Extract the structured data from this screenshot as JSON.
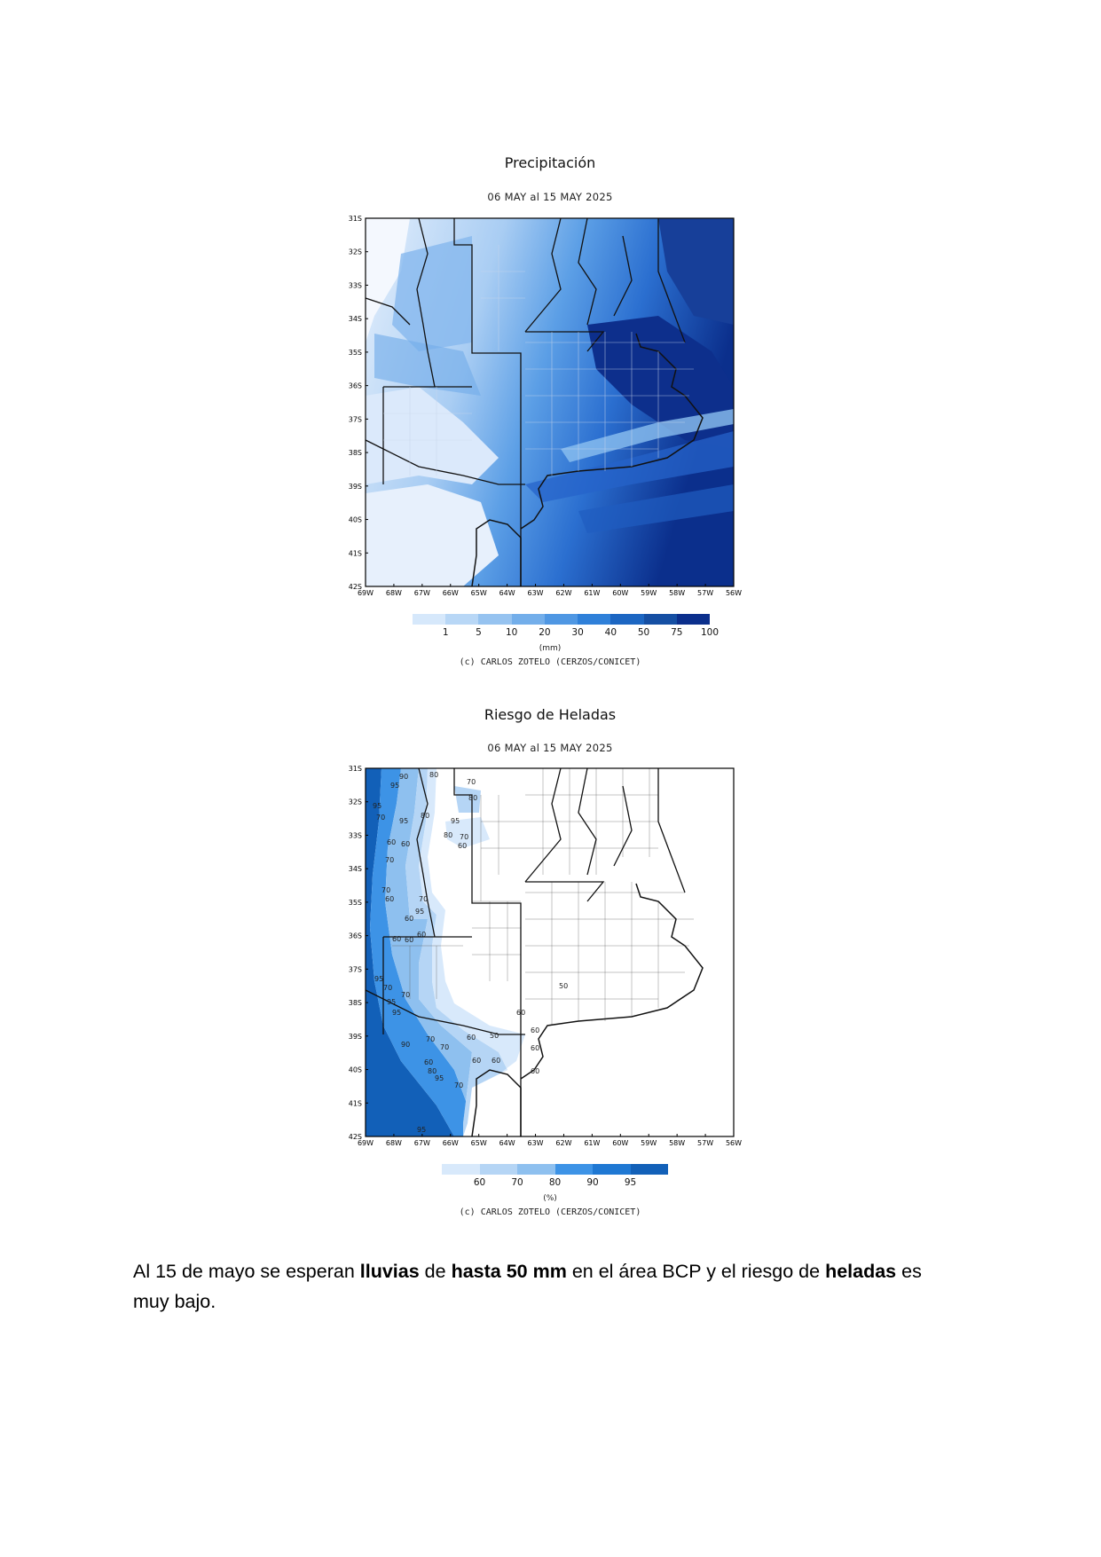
{
  "maps": [
    {
      "id": "precipitation",
      "title": "Precipitación",
      "subtitle": "06 MAY al 15 MAY 2025",
      "lat_labels": [
        "31S",
        "32S",
        "33S",
        "34S",
        "35S",
        "36S",
        "37S",
        "38S",
        "39S",
        "40S",
        "41S",
        "42S"
      ],
      "lon_labels": [
        "69W",
        "68W",
        "67W",
        "66W",
        "65W",
        "64W",
        "63W",
        "62W",
        "61W",
        "60W",
        "59W",
        "58W",
        "57W",
        "56W"
      ],
      "colorbar": {
        "colors": [
          "#d6e8fb",
          "#b8d7f6",
          "#96c3f0",
          "#73aeea",
          "#4f97e3",
          "#2f80d9",
          "#1c66c2",
          "#154fa3",
          "#0b2f8c"
        ],
        "labels": [
          "1",
          "5",
          "10",
          "20",
          "30",
          "40",
          "50",
          "75",
          "100"
        ]
      },
      "unit": "(mm)",
      "credit": "(c) CARLOS ZOTELO (CERZOS/CONICET)"
    },
    {
      "id": "frost-risk",
      "title": "Riesgo de Heladas",
      "subtitle": "06 MAY al 15 MAY 2025",
      "lat_labels": [
        "31S",
        "32S",
        "33S",
        "34S",
        "35S",
        "36S",
        "37S",
        "38S",
        "39S",
        "40S",
        "41S",
        "42S"
      ],
      "lon_labels": [
        "69W",
        "68W",
        "67W",
        "66W",
        "65W",
        "64W",
        "63W",
        "62W",
        "61W",
        "60W",
        "59W",
        "58W",
        "57W",
        "56W"
      ],
      "colorbar": {
        "colors": [
          "#d8e9fb",
          "#b5d5f5",
          "#8ec0ef",
          "#3d93e6",
          "#1f78d3",
          "#1260b8"
        ],
        "labels": [
          "60",
          "70",
          "80",
          "90",
          "95"
        ]
      },
      "unit": "(%)",
      "credit": "(c) CARLOS ZOTELO (CERZOS/CONICET)",
      "contour_labels": [
        "60",
        "70",
        "80",
        "90",
        "95",
        "50"
      ]
    }
  ],
  "summary": {
    "part1": "Al 15 de mayo se esperan ",
    "bold1": "lluvias",
    "part2": " de ",
    "bold2": "hasta 50 mm",
    "part3": " en el área BCP y el riesgo de ",
    "bold3": "heladas",
    "part4": " es muy bajo."
  }
}
